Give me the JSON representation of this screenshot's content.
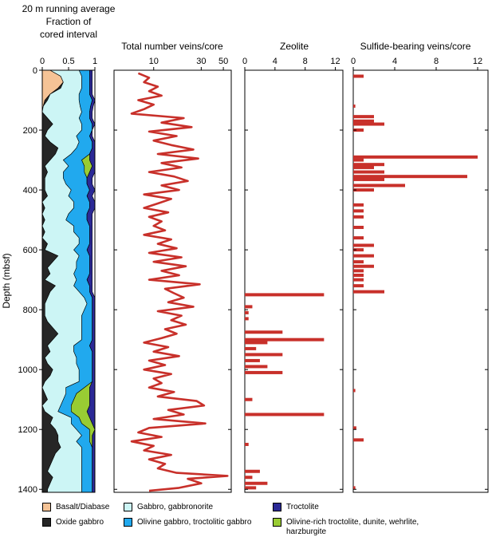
{
  "chart_data": [
    {
      "type": "area",
      "title": "20 m running average Fraction of cored interval",
      "title_lines": [
        "20 m running average",
        "Fraction of",
        "cored interval"
      ],
      "ylabel": "Depth (mbsf)",
      "ylim": [
        1410,
        0
      ],
      "xlim": [
        0,
        1
      ],
      "x_ticks": [
        "0",
        "0.5",
        "1"
      ],
      "y_ticks": [
        "0",
        "200",
        "400",
        "600",
        "800",
        "1000",
        "1200",
        "1400"
      ],
      "stacked_series_order": [
        "Basalt/Diabase",
        "Oxide gabbro",
        "Gabbro, gabbronorite",
        "Olivine gabbro, troctolitic gabbro",
        "Olivine-rich troctolite, dunite, wehrlite, harzburgite",
        "Troctolite"
      ],
      "depths": [
        0,
        20,
        40,
        60,
        80,
        100,
        120,
        140,
        160,
        180,
        200,
        220,
        240,
        260,
        280,
        300,
        320,
        340,
        360,
        380,
        400,
        420,
        440,
        460,
        480,
        500,
        520,
        540,
        560,
        580,
        600,
        620,
        640,
        660,
        680,
        700,
        720,
        740,
        760,
        780,
        800,
        820,
        840,
        860,
        880,
        900,
        920,
        940,
        960,
        980,
        1000,
        1020,
        1040,
        1060,
        1080,
        1100,
        1120,
        1140,
        1160,
        1180,
        1200,
        1220,
        1240,
        1260,
        1280,
        1300,
        1320,
        1340,
        1360,
        1380,
        1400,
        1410
      ],
      "series": [
        {
          "name": "Basalt/Diabase",
          "values": [
            0.15,
            0.35,
            0.4,
            0.3,
            0.15,
            0.05,
            0.02,
            0,
            0,
            0,
            0,
            0,
            0,
            0,
            0,
            0,
            0,
            0,
            0,
            0,
            0,
            0,
            0,
            0,
            0,
            0,
            0,
            0,
            0,
            0,
            0,
            0,
            0,
            0,
            0,
            0,
            0,
            0,
            0,
            0,
            0,
            0,
            0,
            0,
            0,
            0,
            0,
            0,
            0,
            0,
            0,
            0,
            0,
            0,
            0,
            0,
            0,
            0,
            0,
            0,
            0,
            0,
            0,
            0,
            0,
            0,
            0,
            0,
            0,
            0,
            0,
            0
          ]
        },
        {
          "name": "Oxide gabbro",
          "values": [
            0,
            0,
            0,
            0.05,
            0,
            0.05,
            0,
            0,
            0.1,
            0.2,
            0.1,
            0.05,
            0.15,
            0.3,
            0.25,
            0.15,
            0.05,
            0.1,
            0.05,
            0.05,
            0.05,
            0.1,
            0,
            0.05,
            0,
            0.05,
            0,
            0.05,
            0,
            0.1,
            0.05,
            0.3,
            0.2,
            0.1,
            0.15,
            0.05,
            0.25,
            0.15,
            0.1,
            0.05,
            0.05,
            0.05,
            0.1,
            0.2,
            0.3,
            0.2,
            0.1,
            0.15,
            0.05,
            0.1,
            0.2,
            0.15,
            0.05,
            0,
            0.05,
            0.1,
            0,
            0.05,
            0.2,
            0.15,
            0.25,
            0.3,
            0.3,
            0.35,
            0.25,
            0.2,
            0.15,
            0.1,
            0.2,
            0.15,
            0.1,
            0.1
          ]
        },
        {
          "name": "Gabbro, gabbronorite",
          "values": [
            0.55,
            0.4,
            0.35,
            0.4,
            0.55,
            0.6,
            0.7,
            0.75,
            0.6,
            0.55,
            0.65,
            0.6,
            0.55,
            0.35,
            0.3,
            0.25,
            0.45,
            0.3,
            0.35,
            0.4,
            0.5,
            0.4,
            0.6,
            0.55,
            0.5,
            0.4,
            0.6,
            0.55,
            0.7,
            0.6,
            0.55,
            0.4,
            0.45,
            0.55,
            0.45,
            0.6,
            0.35,
            0.55,
            0.7,
            0.8,
            0.75,
            0.7,
            0.65,
            0.55,
            0.45,
            0.55,
            0.5,
            0.45,
            0.6,
            0.55,
            0.5,
            0.55,
            0.65,
            0.45,
            0.4,
            0.3,
            0.35,
            0.25,
            0.35,
            0.4,
            0.4,
            0.45,
            0.35,
            0.4,
            0.5,
            0.55,
            0.6,
            0.65,
            0.55,
            0.6,
            0.65,
            0.65
          ]
        },
        {
          "name": "Olivine gabbro, troctolitic gabbro",
          "values": [
            0.2,
            0.15,
            0.15,
            0.15,
            0.2,
            0.25,
            0.2,
            0.15,
            0.2,
            0.2,
            0.2,
            0.25,
            0.25,
            0.3,
            0.35,
            0.35,
            0.3,
            0.4,
            0.45,
            0.4,
            0.35,
            0.35,
            0.3,
            0.3,
            0.35,
            0.4,
            0.3,
            0.3,
            0.2,
            0.2,
            0.25,
            0.2,
            0.25,
            0.25,
            0.3,
            0.2,
            0.3,
            0.2,
            0.15,
            0.1,
            0.15,
            0.2,
            0.2,
            0.2,
            0.2,
            0.2,
            0.3,
            0.35,
            0.3,
            0.3,
            0.25,
            0.25,
            0.25,
            0.35,
            0.2,
            0.2,
            0.2,
            0.25,
            0.15,
            0.2,
            0.25,
            0.15,
            0.25,
            0.2,
            0.2,
            0.2,
            0.2,
            0.2,
            0.2,
            0.2,
            0.2,
            0.2
          ]
        },
        {
          "name": "Olivine-rich troctolite, dunite, wehrlite, harzburgite",
          "values": [
            0,
            0,
            0,
            0,
            0,
            0,
            0,
            0,
            0,
            0,
            0,
            0,
            0,
            0,
            0,
            0.15,
            0.15,
            0.1,
            0,
            0,
            0,
            0,
            0,
            0,
            0,
            0,
            0,
            0,
            0,
            0,
            0,
            0,
            0,
            0,
            0,
            0,
            0,
            0,
            0,
            0,
            0,
            0,
            0,
            0,
            0,
            0,
            0,
            0,
            0,
            0,
            0,
            0,
            0,
            0.1,
            0.25,
            0.3,
            0.35,
            0.3,
            0.2,
            0.2,
            0.1,
            0.05,
            0.05,
            0,
            0,
            0,
            0,
            0,
            0,
            0,
            0,
            0
          ]
        },
        {
          "name": "Troctolite",
          "values": [
            0.05,
            0.05,
            0.05,
            0.05,
            0.05,
            0.05,
            0.05,
            0.05,
            0.05,
            0.05,
            0,
            0.05,
            0.05,
            0.05,
            0.1,
            0.1,
            0.05,
            0.1,
            0.1,
            0.1,
            0.1,
            0.1,
            0.1,
            0.1,
            0.1,
            0.1,
            0.05,
            0.05,
            0.05,
            0.05,
            0.1,
            0.05,
            0.05,
            0.05,
            0.05,
            0.1,
            0.05,
            0.05,
            0.05,
            0.05,
            0.05,
            0.05,
            0.05,
            0.05,
            0.05,
            0.05,
            0.1,
            0.05,
            0.05,
            0.05,
            0.05,
            0.05,
            0.05,
            0.1,
            0.1,
            0.1,
            0.1,
            0.15,
            0.1,
            0.05,
            0.05,
            0.05,
            0.05,
            0.05,
            0.05,
            0.05,
            0.05,
            0.05,
            0.05,
            0.05,
            0.05,
            0.05
          ]
        }
      ]
    },
    {
      "type": "line",
      "title": "Total number veins/core",
      "xscale": "log",
      "xlim": [
        4,
        60
      ],
      "x_ticks": [
        "10",
        "30",
        "50"
      ],
      "ylim": [
        1410,
        0
      ],
      "color": "#c8302a",
      "depth": [
        10,
        25,
        40,
        55,
        70,
        85,
        100,
        115,
        130,
        145,
        160,
        175,
        190,
        205,
        220,
        235,
        250,
        265,
        280,
        295,
        310,
        325,
        340,
        355,
        370,
        385,
        400,
        415,
        430,
        445,
        460,
        475,
        490,
        505,
        520,
        535,
        550,
        565,
        580,
        595,
        610,
        625,
        640,
        655,
        670,
        685,
        700,
        715,
        730,
        745,
        760,
        775,
        790,
        805,
        820,
        835,
        850,
        865,
        880,
        895,
        910,
        925,
        940,
        955,
        970,
        985,
        1000,
        1015,
        1030,
        1045,
        1060,
        1075,
        1090,
        1105,
        1120,
        1135,
        1150,
        1165,
        1180,
        1195,
        1210,
        1225,
        1240,
        1255,
        1270,
        1285,
        1300,
        1315,
        1330,
        1345,
        1355,
        1365,
        1380,
        1395,
        1405
      ],
      "values": [
        7,
        9,
        8,
        11,
        9,
        12,
        7,
        10,
        8,
        6,
        20,
        12,
        24,
        9,
        17,
        10,
        15,
        25,
        11,
        28,
        12,
        19,
        9,
        16,
        22,
        12,
        18,
        8,
        15,
        11,
        8,
        14,
        9,
        12,
        10,
        13,
        8,
        15,
        11,
        17,
        9,
        19,
        10,
        21,
        12,
        18,
        9,
        29,
        13,
        16,
        20,
        14,
        25,
        11,
        19,
        15,
        21,
        13,
        17,
        12,
        8,
        14,
        10,
        18,
        9,
        13,
        8,
        15,
        10,
        12,
        9,
        16,
        11,
        27,
        32,
        14,
        20,
        10,
        33,
        9,
        7,
        12,
        6,
        10,
        8,
        15,
        9,
        13,
        11,
        17,
        55,
        22,
        30,
        18,
        9
      ]
    },
    {
      "type": "bar",
      "title": "Zeolite",
      "xlim": [
        0,
        13
      ],
      "x_ticks": [
        "0",
        "4",
        "8",
        "12"
      ],
      "ylim": [
        1410,
        0
      ],
      "color": "#c8302a",
      "depth": [
        750,
        790,
        810,
        830,
        875,
        900,
        910,
        930,
        950,
        970,
        990,
        1010,
        1100,
        1150,
        1250,
        1340,
        1360,
        1380,
        1395
      ],
      "values": [
        10.5,
        1,
        0.5,
        0.5,
        5,
        10.5,
        3,
        1.5,
        5,
        2,
        3,
        5,
        1,
        10.5,
        0.5,
        2,
        1,
        3,
        1.5
      ]
    },
    {
      "type": "bar",
      "title": "Sulfide-bearing veins/core",
      "xlim": [
        0,
        13
      ],
      "x_ticks": [
        "0",
        "4",
        "8",
        "12"
      ],
      "ylim": [
        1410,
        0
      ],
      "color": "#c8302a",
      "depth": [
        20,
        120,
        155,
        170,
        180,
        200,
        290,
        300,
        315,
        325,
        340,
        355,
        365,
        385,
        400,
        450,
        470,
        490,
        525,
        560,
        585,
        600,
        620,
        640,
        655,
        670,
        685,
        700,
        720,
        740,
        1070,
        1195,
        1235,
        1395
      ],
      "values": [
        1,
        0.2,
        2,
        2,
        3,
        1,
        12,
        1,
        3,
        2,
        3,
        11,
        3,
        5,
        2,
        1,
        1,
        1,
        1,
        1,
        2,
        1,
        2,
        1,
        2,
        1,
        1,
        1,
        1,
        3,
        0.2,
        0.3,
        1,
        0.2
      ]
    }
  ],
  "legend": [
    {
      "label": "Basalt/Diabase",
      "color": "#f5c396"
    },
    {
      "label": "Oxide gabbro",
      "color": "#262626"
    },
    {
      "label": "Gabbro, gabbronorite",
      "color": "#ccf5f5"
    },
    {
      "label": "Olivine gabbro, troctolitic gabbro",
      "color": "#21a9ee"
    },
    {
      "label": "Troctolite",
      "color": "#2b2996"
    },
    {
      "label": "Olivine-rich troctolite, dunite, wehrlite, harzburgite",
      "color": "#99cc33"
    }
  ]
}
